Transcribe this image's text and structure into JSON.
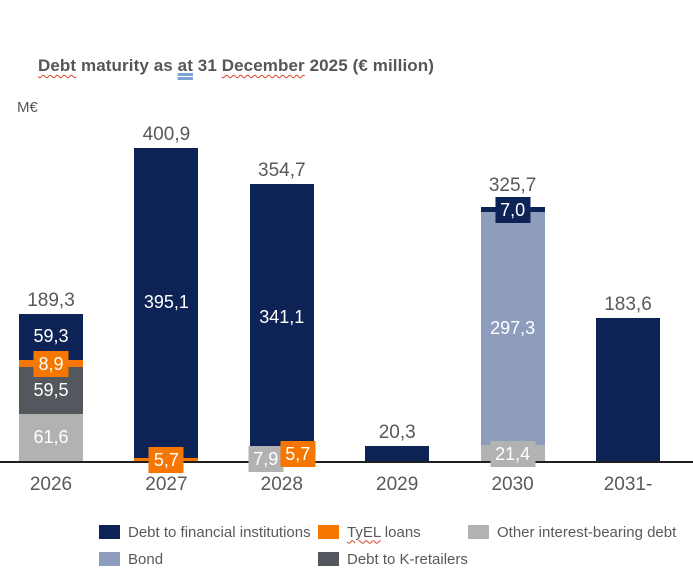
{
  "page": {
    "background": "#ffffff"
  },
  "title": {
    "text": "Debt maturity as at 31 December 2025 (€ million)",
    "tokens": [
      {
        "text": "Debt",
        "mark": "spelling"
      },
      {
        "text": " maturity as "
      },
      {
        "text": "at",
        "mark": "grammar"
      },
      {
        "text": " 31 "
      },
      {
        "text": "December",
        "mark": "spelling"
      },
      {
        "text": " 2025 (€ million)"
      }
    ]
  },
  "y_axis": {
    "unit_label": "M€"
  },
  "colors": {
    "debt_financial_institutions": "#0e2355",
    "tyel_loans": "#f57600",
    "other_interest_bearing": "#b2b2b2",
    "bond": "#8e9dbd",
    "debt_k_retailers": "#54575d",
    "total_label": "#595959",
    "axis_line": "#1f1f1f",
    "title_text": "#54565a"
  },
  "chart_data": {
    "type": "bar",
    "subtype": "stacked",
    "title": "Debt maturity as at 31 December 2025 (€ million)",
    "unit": "€ million (M€)",
    "grid": false,
    "legend_position": "bottom",
    "ylim": [
      0,
      420
    ],
    "categories": [
      "2026",
      "2027",
      "2028",
      "2029",
      "2030",
      "2031-"
    ],
    "series": [
      {
        "name": "Debt to financial institutions",
        "color": "#0e2355",
        "values": [
          59.3,
          395.1,
          341.1,
          20.3,
          7.0,
          183.6
        ]
      },
      {
        "name": "TyEL loans",
        "color": "#f57600",
        "values": [
          8.9,
          5.7,
          5.7,
          0,
          0,
          0
        ]
      },
      {
        "name": "Other interest-bearing debt",
        "color": "#b2b2b2",
        "values": [
          61.6,
          0,
          7.9,
          0,
          21.4,
          0
        ]
      },
      {
        "name": "Bond",
        "color": "#8e9dbd",
        "values": [
          0,
          0,
          0,
          0,
          297.3,
          0
        ]
      },
      {
        "name": "Debt to K-retailers",
        "color": "#54575d",
        "values": [
          59.5,
          0,
          0,
          0,
          0,
          0
        ]
      }
    ],
    "series_colors": {
      "Debt to financial institutions": "#0e2355",
      "TyEL loans": "#f57600",
      "Other interest-bearing debt": "#b2b2b2",
      "Bond": "#8e9dbd",
      "Debt to K-retailers": "#54575d"
    },
    "totals": [
      189.3,
      400.9,
      354.7,
      20.3,
      325.7,
      183.6
    ],
    "bars": [
      {
        "category": "2026",
        "total_label": "189,3",
        "stack": [
          {
            "series": "Other interest-bearing debt",
            "value": 61.6,
            "value_label": "61,6",
            "label_style": "inside"
          },
          {
            "series": "Debt to K-retailers",
            "value": 59.5,
            "value_label": "59,5",
            "label_style": "inside"
          },
          {
            "series": "TyEL loans",
            "value": 8.9,
            "value_label": "8,9",
            "label_style": "callout",
            "callout_dx": 0
          },
          {
            "series": "Debt to financial institutions",
            "value": 59.3,
            "value_label": "59,3",
            "label_style": "inside"
          }
        ]
      },
      {
        "category": "2027",
        "total_label": "400,9",
        "stack": [
          {
            "series": "TyEL loans",
            "value": 5.7,
            "value_label": "5,7",
            "label_style": "callout",
            "callout_dx": 0
          },
          {
            "series": "Debt to financial institutions",
            "value": 395.1,
            "value_label": "395,1",
            "label_style": "inside"
          }
        ]
      },
      {
        "category": "2028",
        "total_label": "354,7",
        "stack": [
          {
            "series": "Other interest-bearing debt",
            "value": 7.9,
            "value_label": "7,9",
            "label_style": "callout",
            "callout_dx": -16
          },
          {
            "series": "TyEL loans",
            "value": 5.7,
            "value_label": "5,7",
            "label_style": "callout",
            "callout_dx": 16
          },
          {
            "series": "Debt to financial institutions",
            "value": 341.1,
            "value_label": "341,1",
            "label_style": "inside"
          }
        ]
      },
      {
        "category": "2029",
        "total_label": "20,3",
        "stack": [
          {
            "series": "Debt to financial institutions",
            "value": 20.3,
            "value_label": "",
            "label_style": "none"
          }
        ]
      },
      {
        "category": "2030",
        "total_label": "325,7",
        "stack": [
          {
            "series": "Other interest-bearing debt",
            "value": 21.4,
            "value_label": "21,4",
            "label_style": "callout",
            "callout_dx": 0
          },
          {
            "series": "Bond",
            "value": 297.3,
            "value_label": "297,3",
            "label_style": "inside"
          },
          {
            "series": "Debt to financial institutions",
            "value": 7.0,
            "value_label": "7,0",
            "label_style": "callout",
            "callout_dx": 0
          }
        ]
      },
      {
        "category": "2031-",
        "total_label": "183,6",
        "stack": [
          {
            "series": "Debt to financial institutions",
            "value": 183.6,
            "value_label": "",
            "label_style": "none"
          }
        ]
      }
    ]
  },
  "legend": {
    "rows": [
      [
        {
          "label": "Debt to financial institutions",
          "color": "#0e2355"
        },
        {
          "label": "TyEL loans",
          "color": "#f57600",
          "tokens": [
            {
              "text": "TyEL",
              "mark": "spelling"
            },
            {
              "text": " loans"
            }
          ]
        },
        {
          "label": "Other interest-bearing debt",
          "color": "#b2b2b2"
        }
      ],
      [
        {
          "label": "Bond",
          "color": "#8e9dbd"
        },
        {
          "label": "Debt to K-retailers",
          "color": "#54575d"
        }
      ]
    ]
  }
}
